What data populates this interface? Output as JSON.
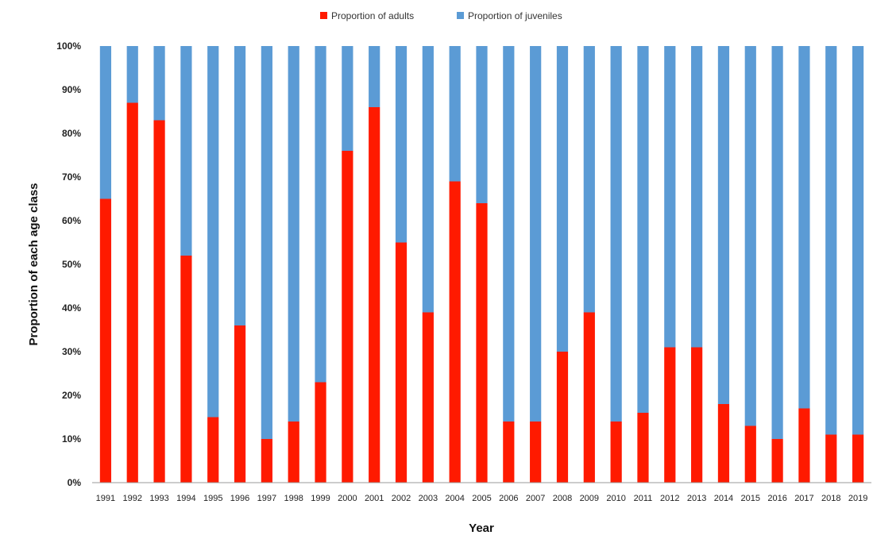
{
  "chart_data": {
    "type": "bar",
    "stacked": true,
    "percent_stacked": true,
    "xlabel": "Year",
    "ylabel": "Proportion of each age class",
    "ylim": [
      0,
      100
    ],
    "y_ticks": [
      "0%",
      "10%",
      "20%",
      "30%",
      "40%",
      "50%",
      "60%",
      "70%",
      "80%",
      "90%",
      "100%"
    ],
    "legend_position": "top",
    "grid": false,
    "categories": [
      "1991",
      "1992",
      "1993",
      "1994",
      "1995",
      "1996",
      "1997",
      "1998",
      "1999",
      "2000",
      "2001",
      "2002",
      "2003",
      "2004",
      "2005",
      "2006",
      "2007",
      "2008",
      "2009",
      "2010",
      "2011",
      "2012",
      "2013",
      "2014",
      "2015",
      "2016",
      "2017",
      "2018",
      "2019"
    ],
    "series": [
      {
        "name": "Proportion of adults",
        "color": "#ff1a00",
        "values": [
          65,
          87,
          83,
          52,
          15,
          36,
          10,
          14,
          23,
          76,
          86,
          55,
          39,
          69,
          64,
          14,
          14,
          30,
          39,
          14,
          16,
          31,
          31,
          18,
          13,
          10,
          17,
          11,
          11
        ]
      },
      {
        "name": "Proportion of juveniles",
        "color": "#5b9bd5",
        "values": [
          35,
          13,
          17,
          48,
          85,
          64,
          90,
          86,
          77,
          24,
          14,
          45,
          61,
          31,
          36,
          86,
          86,
          70,
          61,
          86,
          84,
          69,
          69,
          82,
          87,
          90,
          83,
          89,
          89
        ]
      }
    ]
  }
}
